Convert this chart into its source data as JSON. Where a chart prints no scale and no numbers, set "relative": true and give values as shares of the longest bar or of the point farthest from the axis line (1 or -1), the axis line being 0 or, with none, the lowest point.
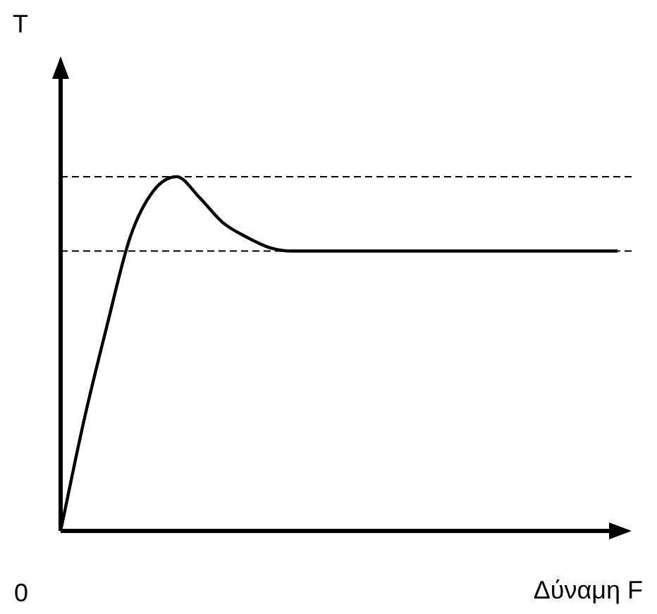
{
  "chart_data": {
    "type": "line",
    "relative": true,
    "xlabel": "Δύναμη F",
    "annotations": [
      "T",
      "0"
    ],
    "categories": [
      null,
      null,
      null,
      null,
      null,
      null,
      null,
      null,
      null,
      null,
      null,
      null,
      null,
      null,
      null,
      null,
      null,
      null,
      null,
      null,
      null,
      null,
      null,
      null,
      null
    ],
    "values": [
      0,
      0.31,
      0.58,
      0.83,
      0.96,
      1,
      0.94,
      0.87,
      0.83,
      0.8,
      0.79,
      0.79,
      0.79,
      0.79,
      0.79,
      0.79,
      0.79,
      0.79,
      0.79,
      0.79,
      0.79,
      0.79,
      0.79,
      0.79,
      0.79
    ],
    "color": "#000000",
    "line_style": "solid",
    "ref_lines": [
      {
        "axis": "y",
        "value": 1,
        "line_style": "dashed"
      },
      {
        "axis": "y",
        "value": 0.79,
        "line_style": "dashed"
      }
    ]
  }
}
